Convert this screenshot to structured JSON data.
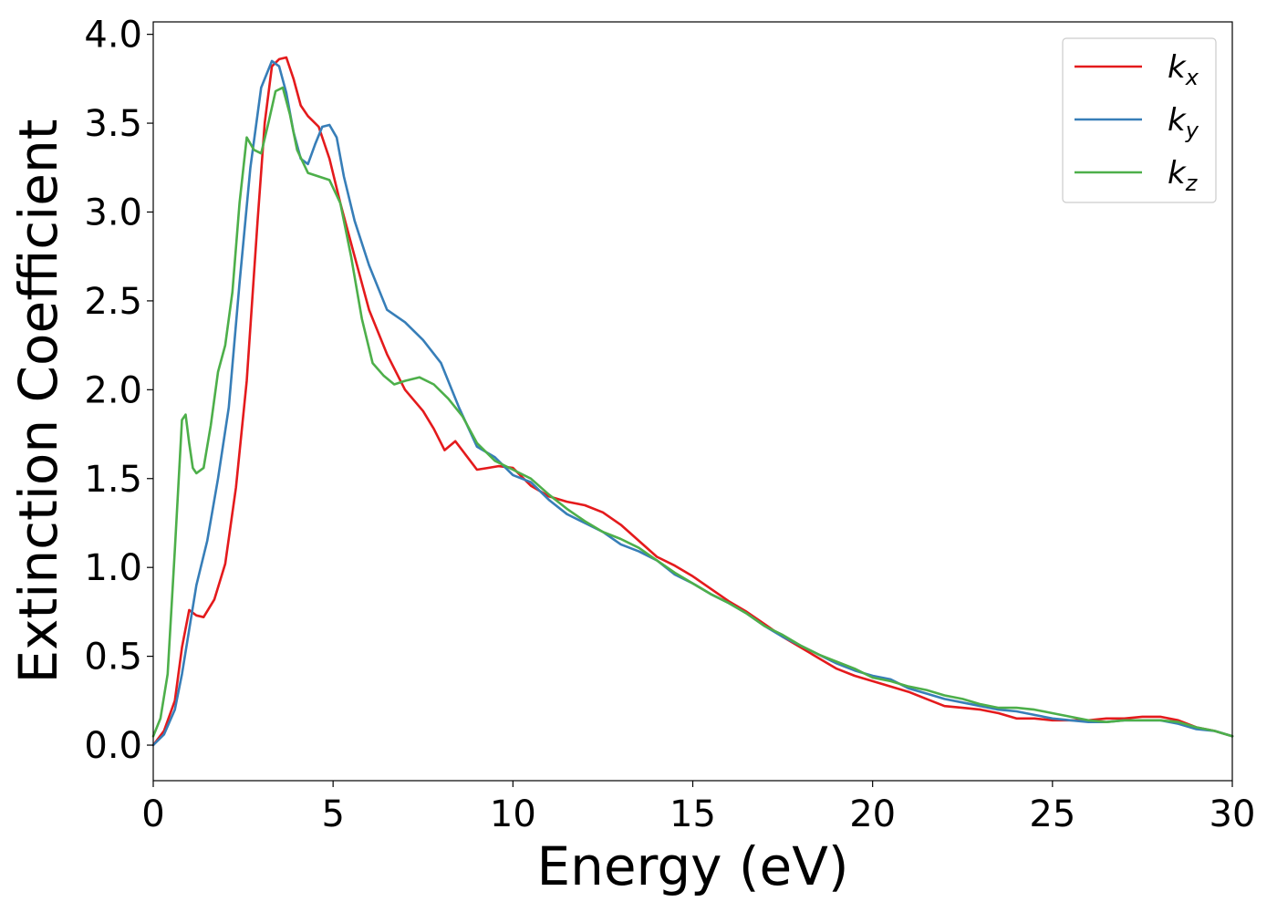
{
  "chart_data": {
    "type": "line",
    "xlabel": "Energy (eV)",
    "ylabel": "Extinction Coefficient",
    "xlim": [
      0,
      30
    ],
    "ylim": [
      -0.2,
      4.07
    ],
    "xticks": [
      "0",
      "5",
      "10",
      "15",
      "20",
      "25",
      "30"
    ],
    "yticks": [
      "0.0",
      "0.5",
      "1.0",
      "1.5",
      "2.0",
      "2.5",
      "3.0",
      "3.5",
      "4.0"
    ],
    "grid": false,
    "legend_position": "top-right",
    "series": [
      {
        "name": "k",
        "subscript": "x",
        "color": "#e41a1c",
        "x": [
          0,
          0.3,
          0.6,
          0.8,
          1.0,
          1.2,
          1.4,
          1.7,
          2.0,
          2.3,
          2.6,
          2.9,
          3.1,
          3.3,
          3.5,
          3.7,
          3.9,
          4.1,
          4.3,
          4.6,
          4.9,
          5.2,
          5.6,
          6.0,
          6.5,
          7.0,
          7.5,
          7.8,
          8.1,
          8.4,
          8.7,
          9.0,
          9.3,
          9.6,
          10.0,
          10.5,
          11.0,
          11.5,
          12.0,
          12.5,
          13.0,
          13.5,
          14.0,
          14.5,
          15.0,
          15.5,
          16.0,
          16.5,
          17.0,
          17.5,
          18.0,
          18.5,
          19.0,
          19.5,
          20.0,
          20.5,
          21.0,
          21.5,
          22.0,
          22.5,
          23.0,
          23.5,
          24.0,
          24.5,
          25.0,
          25.5,
          26.0,
          26.5,
          27.0,
          27.5,
          28.0,
          28.5,
          29.0,
          29.5,
          30.0
        ],
        "values": [
          0.0,
          0.08,
          0.25,
          0.55,
          0.76,
          0.73,
          0.72,
          0.82,
          1.02,
          1.45,
          2.05,
          2.95,
          3.5,
          3.82,
          3.86,
          3.87,
          3.75,
          3.6,
          3.54,
          3.48,
          3.3,
          3.05,
          2.75,
          2.45,
          2.2,
          2.0,
          1.88,
          1.78,
          1.66,
          1.71,
          1.63,
          1.55,
          1.56,
          1.57,
          1.56,
          1.46,
          1.4,
          1.37,
          1.35,
          1.31,
          1.24,
          1.15,
          1.06,
          1.01,
          0.95,
          0.88,
          0.81,
          0.75,
          0.68,
          0.61,
          0.55,
          0.49,
          0.43,
          0.39,
          0.36,
          0.33,
          0.3,
          0.26,
          0.22,
          0.21,
          0.2,
          0.18,
          0.15,
          0.15,
          0.14,
          0.14,
          0.14,
          0.15,
          0.15,
          0.16,
          0.16,
          0.14,
          0.1,
          0.08,
          0.05
        ]
      },
      {
        "name": "k",
        "subscript": "y",
        "color": "#377eb8",
        "x": [
          0,
          0.3,
          0.6,
          0.8,
          1.0,
          1.2,
          1.5,
          1.8,
          2.1,
          2.4,
          2.7,
          3.0,
          3.3,
          3.5,
          3.7,
          3.9,
          4.1,
          4.3,
          4.5,
          4.7,
          4.9,
          5.1,
          5.3,
          5.6,
          6.0,
          6.5,
          7.0,
          7.5,
          8.0,
          8.5,
          9.0,
          9.5,
          10.0,
          10.5,
          11.0,
          11.5,
          12.0,
          12.5,
          13.0,
          13.5,
          14.0,
          14.5,
          15.0,
          15.5,
          16.0,
          16.5,
          17.0,
          17.5,
          18.0,
          18.5,
          19.0,
          19.5,
          20.0,
          20.5,
          21.0,
          21.5,
          22.0,
          22.5,
          23.0,
          23.5,
          24.0,
          24.5,
          25.0,
          25.5,
          26.0,
          26.5,
          27.0,
          27.5,
          28.0,
          28.5,
          29.0,
          29.5,
          30.0
        ],
        "values": [
          0.0,
          0.06,
          0.2,
          0.4,
          0.65,
          0.9,
          1.15,
          1.5,
          1.9,
          2.6,
          3.25,
          3.7,
          3.85,
          3.82,
          3.67,
          3.45,
          3.3,
          3.27,
          3.38,
          3.48,
          3.49,
          3.42,
          3.2,
          2.95,
          2.7,
          2.45,
          2.38,
          2.28,
          2.15,
          1.9,
          1.68,
          1.62,
          1.52,
          1.48,
          1.38,
          1.3,
          1.25,
          1.2,
          1.13,
          1.09,
          1.04,
          0.96,
          0.91,
          0.85,
          0.8,
          0.74,
          0.67,
          0.61,
          0.56,
          0.51,
          0.46,
          0.42,
          0.39,
          0.37,
          0.32,
          0.29,
          0.26,
          0.24,
          0.22,
          0.2,
          0.19,
          0.17,
          0.15,
          0.14,
          0.13,
          0.13,
          0.14,
          0.14,
          0.14,
          0.12,
          0.09,
          0.08,
          0.05
        ]
      },
      {
        "name": "k",
        "subscript": "z",
        "color": "#4daf4a",
        "x": [
          0,
          0.2,
          0.4,
          0.6,
          0.8,
          0.9,
          1.0,
          1.1,
          1.2,
          1.4,
          1.6,
          1.8,
          2.0,
          2.2,
          2.4,
          2.6,
          2.8,
          3.0,
          3.2,
          3.4,
          3.6,
          3.8,
          4.0,
          4.3,
          4.6,
          4.9,
          5.2,
          5.5,
          5.8,
          6.1,
          6.4,
          6.7,
          7.0,
          7.4,
          7.8,
          8.2,
          8.6,
          9.0,
          9.5,
          10.0,
          10.5,
          11.0,
          11.5,
          12.0,
          12.5,
          13.0,
          13.5,
          14.0,
          14.5,
          15.0,
          15.5,
          16.0,
          16.5,
          17.0,
          17.5,
          18.0,
          18.5,
          19.0,
          19.5,
          20.0,
          20.5,
          21.0,
          21.5,
          22.0,
          22.5,
          23.0,
          23.5,
          24.0,
          24.5,
          25.0,
          25.5,
          26.0,
          26.5,
          27.0,
          27.5,
          28.0,
          28.5,
          29.0,
          29.5,
          30.0
        ],
        "values": [
          0.05,
          0.15,
          0.4,
          1.1,
          1.83,
          1.86,
          1.7,
          1.56,
          1.53,
          1.56,
          1.8,
          2.1,
          2.25,
          2.55,
          3.05,
          3.42,
          3.35,
          3.33,
          3.5,
          3.68,
          3.7,
          3.55,
          3.35,
          3.22,
          3.2,
          3.18,
          3.05,
          2.75,
          2.4,
          2.15,
          2.08,
          2.03,
          2.05,
          2.07,
          2.03,
          1.95,
          1.85,
          1.7,
          1.6,
          1.55,
          1.5,
          1.41,
          1.33,
          1.26,
          1.2,
          1.16,
          1.11,
          1.04,
          0.97,
          0.91,
          0.85,
          0.8,
          0.74,
          0.67,
          0.62,
          0.56,
          0.51,
          0.47,
          0.43,
          0.38,
          0.36,
          0.33,
          0.31,
          0.28,
          0.26,
          0.23,
          0.21,
          0.21,
          0.2,
          0.18,
          0.16,
          0.14,
          0.13,
          0.14,
          0.14,
          0.14,
          0.13,
          0.1,
          0.08,
          0.05
        ]
      }
    ]
  }
}
